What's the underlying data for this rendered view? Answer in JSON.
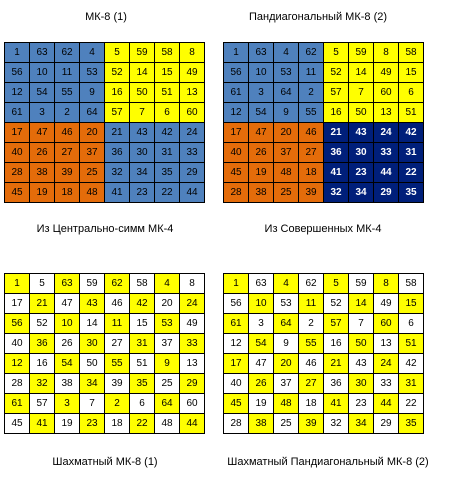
{
  "colors": {
    "Y": "#ffff00",
    "B": "#4f81bd",
    "O": "#e46c0a",
    "N": "#001f7a",
    "W": "#ffffff"
  },
  "squares": [
    {
      "title": "МК-8 (1)",
      "caption": "Из Центрально-симм МК-4",
      "values": [
        [
          1,
          63,
          62,
          4,
          5,
          59,
          58,
          8
        ],
        [
          56,
          10,
          11,
          53,
          52,
          14,
          15,
          49
        ],
        [
          12,
          54,
          55,
          9,
          16,
          50,
          51,
          13
        ],
        [
          61,
          3,
          2,
          64,
          57,
          7,
          6,
          60
        ],
        [
          17,
          47,
          46,
          20,
          21,
          43,
          42,
          24
        ],
        [
          40,
          26,
          27,
          37,
          36,
          30,
          31,
          33
        ],
        [
          28,
          38,
          39,
          25,
          32,
          34,
          35,
          29
        ],
        [
          45,
          19,
          18,
          48,
          41,
          23,
          22,
          44
        ]
      ],
      "colors": [
        "BBBBYYYY",
        "BBBBYYYY",
        "BBBBYYYY",
        "BBBBYYYY",
        "OOOOBBBB",
        "OOOOBBBB",
        "OOOOBBBB",
        "OOOOBBBB"
      ]
    },
    {
      "title": "Пандиагональный МК-8 (2)",
      "caption": "Из Совершенных МК-4",
      "values": [
        [
          1,
          63,
          4,
          62,
          5,
          59,
          8,
          58
        ],
        [
          56,
          10,
          53,
          11,
          52,
          14,
          49,
          15
        ],
        [
          61,
          3,
          64,
          2,
          57,
          7,
          60,
          6
        ],
        [
          12,
          54,
          9,
          55,
          16,
          50,
          13,
          51
        ],
        [
          17,
          47,
          20,
          46,
          21,
          43,
          24,
          42
        ],
        [
          40,
          26,
          37,
          27,
          36,
          30,
          33,
          31
        ],
        [
          45,
          19,
          48,
          18,
          41,
          23,
          44,
          22
        ],
        [
          28,
          38,
          25,
          39,
          32,
          34,
          29,
          35
        ]
      ],
      "colors": [
        "BBBBYYYY",
        "BBBBYYYY",
        "BBBBYYYY",
        "BBBBYYYY",
        "OOOONNNN",
        "OOOONNNN",
        "OOOONNNN",
        "OOOONNNN"
      ]
    },
    {
      "title": "",
      "caption": "Шахматный МК-8 (1)",
      "values": [
        [
          1,
          5,
          63,
          59,
          62,
          58,
          4,
          8
        ],
        [
          17,
          21,
          47,
          43,
          46,
          42,
          20,
          24
        ],
        [
          56,
          52,
          10,
          14,
          11,
          15,
          53,
          49
        ],
        [
          40,
          36,
          26,
          30,
          27,
          31,
          37,
          33
        ],
        [
          12,
          16,
          54,
          50,
          55,
          51,
          9,
          13
        ],
        [
          28,
          32,
          38,
          34,
          39,
          35,
          25,
          29
        ],
        [
          61,
          57,
          3,
          7,
          2,
          6,
          64,
          60
        ],
        [
          45,
          41,
          19,
          23,
          18,
          22,
          48,
          44
        ]
      ],
      "colors": [
        "YWYWYWYW",
        "WYWYWYWY",
        "YWYWYWYW",
        "WYWYWYWY",
        "YWYWYWYW",
        "WYWYWYWY",
        "YWYWYWYW",
        "WYWYWYWY"
      ]
    },
    {
      "title": "",
      "caption": "Шахматный Пандиагональный МК-8 (2)",
      "values": [
        [
          1,
          63,
          4,
          62,
          5,
          59,
          8,
          58
        ],
        [
          56,
          10,
          53,
          11,
          52,
          14,
          49,
          15
        ],
        [
          61,
          3,
          64,
          2,
          57,
          7,
          60,
          6
        ],
        [
          12,
          54,
          9,
          55,
          16,
          50,
          13,
          51
        ],
        [
          17,
          47,
          20,
          46,
          21,
          43,
          24,
          42
        ],
        [
          40,
          26,
          37,
          27,
          36,
          30,
          33,
          31
        ],
        [
          45,
          19,
          48,
          18,
          41,
          23,
          44,
          22
        ],
        [
          28,
          38,
          25,
          39,
          32,
          34,
          29,
          35
        ]
      ],
      "colors": [
        "YWYWYWYW",
        "WYWYWYWY",
        "YWYWYWYW",
        "WYWYWYWY",
        "YWYWYWYW",
        "WYWYWYWY",
        "YWYWYWYW",
        "WYWYWYWY"
      ]
    }
  ]
}
